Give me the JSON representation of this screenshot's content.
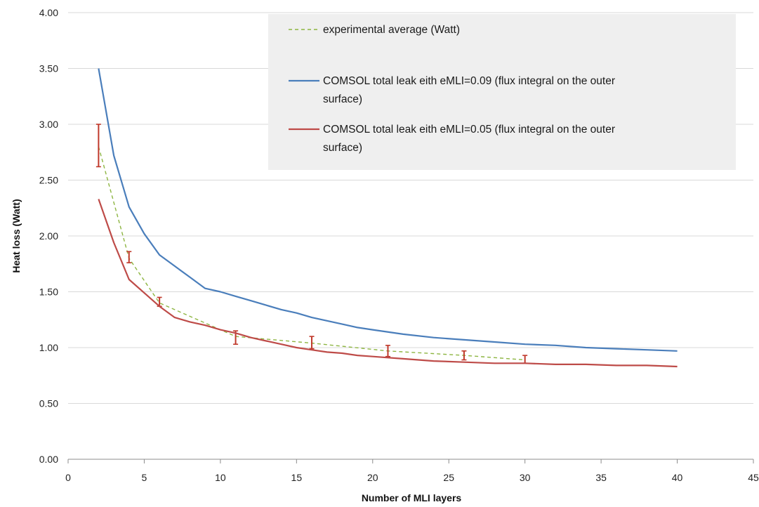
{
  "chart_data": {
    "type": "line",
    "title": "",
    "xlabel": "Number of MLI layers",
    "ylabel": "Heat loss (Watt)",
    "xlim": [
      0,
      45
    ],
    "ylim": [
      0,
      4
    ],
    "x_ticks": [
      0,
      5,
      10,
      15,
      20,
      25,
      30,
      35,
      40,
      45
    ],
    "x_tick_labels": [
      "0",
      "5",
      "10",
      "15",
      "20",
      "25",
      "30",
      "35",
      "40",
      "45"
    ],
    "y_ticks": [
      0,
      0.5,
      1,
      1.5,
      2,
      2.5,
      3,
      3.5,
      4
    ],
    "y_tick_labels": [
      "0.00",
      "0.50",
      "1.00",
      "1.50",
      "2.00",
      "2.50",
      "3.00",
      "3.50",
      "4.00"
    ],
    "grid": true,
    "legend_position": "top-right",
    "series": [
      {
        "name": "experimental average (Watt)",
        "legend_lines": [
          "experimental average (Watt)"
        ],
        "color": "#8db541",
        "style": "dashed",
        "x": [
          2,
          4,
          6,
          11,
          16,
          21,
          26,
          30
        ],
        "y": [
          2.8,
          1.8,
          1.4,
          1.1,
          1.04,
          0.97,
          0.93,
          0.89
        ],
        "error_low": [
          2.62,
          1.76,
          1.37,
          1.03,
          0.99,
          0.92,
          0.89,
          0.86
        ],
        "error_high": [
          3.0,
          1.86,
          1.45,
          1.15,
          1.1,
          1.02,
          0.97,
          0.93
        ],
        "error_color": "#c0392b"
      },
      {
        "name": "COMSOL total leak eith eMLI=0.09  (flux integral on the outer surface)",
        "legend_lines": [
          "COMSOL total leak eith eMLI=0.09  (flux integral on the outer",
          "surface)"
        ],
        "color": "#4a7ebb",
        "style": "solid",
        "x": [
          2,
          3,
          4,
          5,
          6,
          7,
          8,
          9,
          10,
          11,
          12,
          13,
          14,
          15,
          16,
          17,
          18,
          19,
          20,
          22,
          24,
          26,
          28,
          30,
          32,
          34,
          36,
          38,
          40
        ],
        "y": [
          3.5,
          2.72,
          2.26,
          2.02,
          1.83,
          1.73,
          1.63,
          1.53,
          1.5,
          1.46,
          1.42,
          1.38,
          1.34,
          1.31,
          1.27,
          1.24,
          1.21,
          1.18,
          1.16,
          1.12,
          1.09,
          1.07,
          1.05,
          1.03,
          1.02,
          1.0,
          0.99,
          0.98,
          0.97
        ]
      },
      {
        "name": "COMSOL total leak eith eMLI=0.05  (flux integral on the outer surface)",
        "legend_lines": [
          "COMSOL total leak eith eMLI=0.05  (flux integral on the outer",
          "surface)"
        ],
        "color": "#be4b48",
        "style": "solid",
        "x": [
          2,
          3,
          4,
          5,
          6,
          7,
          8,
          9,
          10,
          11,
          12,
          13,
          14,
          15,
          16,
          17,
          18,
          19,
          20,
          22,
          24,
          26,
          28,
          30,
          32,
          34,
          36,
          38,
          40
        ],
        "y": [
          2.33,
          1.94,
          1.61,
          1.49,
          1.37,
          1.27,
          1.23,
          1.2,
          1.16,
          1.13,
          1.09,
          1.06,
          1.03,
          1.0,
          0.98,
          0.96,
          0.95,
          0.93,
          0.92,
          0.9,
          0.88,
          0.87,
          0.86,
          0.86,
          0.85,
          0.85,
          0.84,
          0.84,
          0.83
        ]
      }
    ]
  }
}
